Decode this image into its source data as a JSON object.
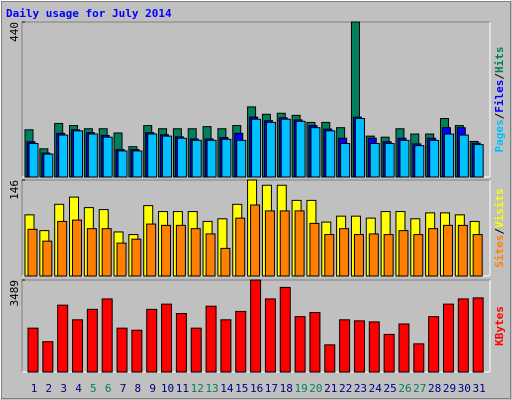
{
  "title": "Daily usage for July 2014",
  "legend_separator": "/",
  "chart_data": [
    {
      "type": "bar",
      "ylim": [
        0,
        440
      ],
      "yticks": [
        440
      ],
      "series": [
        {
          "name": "Hits",
          "color": "#00805c",
          "values": [
            134,
            80,
            152,
            146,
            137,
            137,
            125,
            86,
            146,
            137,
            137,
            137,
            143,
            137,
            146,
            199,
            178,
            181,
            175,
            155,
            155,
            140,
            440,
            116,
            113,
            137,
            122,
            122,
            166,
            146,
            101
          ]
        },
        {
          "name": "Files",
          "color": "#0000ff",
          "values": [
            100,
            68,
            124,
            134,
            126,
            118,
            78,
            78,
            126,
            120,
            114,
            108,
            108,
            112,
            124,
            170,
            160,
            168,
            162,
            146,
            136,
            110,
            170,
            110,
            100,
            110,
            94,
            110,
            140,
            140,
            96
          ]
        },
        {
          "name": "Pages",
          "color": "#00c0ff",
          "values": [
            95,
            65,
            119,
            131,
            122,
            113,
            74,
            74,
            122,
            116,
            110,
            104,
            104,
            107,
            104,
            164,
            155,
            164,
            158,
            140,
            131,
            95,
            166,
            95,
            95,
            104,
            89,
            104,
            122,
            119,
            92
          ]
        }
      ]
    },
    {
      "type": "bar",
      "ylim": [
        0,
        146
      ],
      "yticks": [
        146
      ],
      "series": [
        {
          "name": "Visits",
          "color": "#ffff00",
          "values": [
            93,
            69,
            109,
            120,
            104,
            101,
            67,
            63,
            107,
            98,
            98,
            98,
            83,
            87,
            109,
            146,
            138,
            138,
            115,
            115,
            82,
            91,
            91,
            88,
            98,
            98,
            87,
            96,
            96,
            93,
            83
          ]
        },
        {
          "name": "Sites",
          "color": "#ff8000",
          "values": [
            71,
            53,
            83,
            85,
            72,
            72,
            50,
            56,
            79,
            77,
            77,
            72,
            64,
            42,
            88,
            108,
            99,
            99,
            99,
            80,
            63,
            72,
            63,
            64,
            63,
            69,
            63,
            72,
            77,
            77,
            63
          ]
        }
      ]
    },
    {
      "type": "bar",
      "ylim": [
        0,
        3489
      ],
      "yticks": [
        3489
      ],
      "categories": [
        1,
        2,
        3,
        4,
        5,
        6,
        7,
        8,
        9,
        10,
        11,
        12,
        13,
        14,
        15,
        16,
        17,
        18,
        19,
        20,
        21,
        22,
        23,
        24,
        25,
        26,
        27,
        28,
        29,
        30,
        31
      ],
      "category_colors": [
        "#000080",
        "#000080",
        "#000080",
        "#000080",
        "#00805c",
        "#00805c",
        "#000080",
        "#000080",
        "#000080",
        "#000080",
        "#000080",
        "#00805c",
        "#00805c",
        "#000080",
        "#000080",
        "#000080",
        "#000080",
        "#000080",
        "#00805c",
        "#00805c",
        "#000080",
        "#000080",
        "#000080",
        "#000080",
        "#000080",
        "#00805c",
        "#00805c",
        "#000080",
        "#000080",
        "#000080",
        "#000080"
      ],
      "series": [
        {
          "name": "KBytes",
          "color": "#ff0000",
          "values": [
            1663,
            1149,
            2535,
            1980,
            2376,
            2772,
            1663,
            1584,
            2376,
            2574,
            2218,
            1663,
            2495,
            1980,
            2297,
            3489,
            2772,
            3208,
            2099,
            2257,
            1030,
            1980,
            1941,
            1901,
            1426,
            1822,
            1069,
            2099,
            2574,
            2772,
            2811
          ]
        }
      ]
    }
  ]
}
